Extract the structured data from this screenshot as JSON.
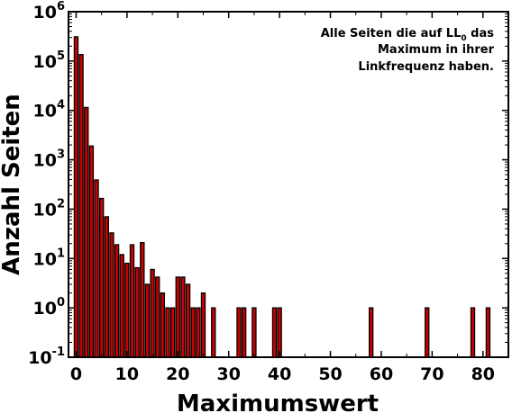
{
  "chart_data": {
    "type": "bar",
    "xlabel": "Maximumswert",
    "ylabel": "Anzahl Seiten",
    "yscale": "log",
    "ylim": [
      0.1,
      1000000
    ],
    "xlim": [
      -1.5,
      85
    ],
    "x_ticks": [
      0,
      10,
      20,
      30,
      40,
      50,
      60,
      70,
      80
    ],
    "y_ticks": [
      {
        "base": "10",
        "exp": "-1",
        "value": 0.1
      },
      {
        "base": "10",
        "exp": "0",
        "value": 1
      },
      {
        "base": "10",
        "exp": "1",
        "value": 10
      },
      {
        "base": "10",
        "exp": "2",
        "value": 100
      },
      {
        "base": "10",
        "exp": "3",
        "value": 1000
      },
      {
        "base": "10",
        "exp": "4",
        "value": 10000
      },
      {
        "base": "10",
        "exp": "5",
        "value": 100000
      },
      {
        "base": "10",
        "exp": "6",
        "value": 1000000
      }
    ],
    "bar_color": "#cc0000",
    "annotation": {
      "line1": "Alle Seiten die auf LL",
      "line1_sub": "0",
      "line1_end": " das",
      "line2": "Maximum in ihrer",
      "line3": "Linkfrequenz haben."
    },
    "x": [
      0,
      1,
      2,
      3,
      4,
      5,
      6,
      7,
      8,
      9,
      10,
      11,
      12,
      13,
      14,
      15,
      16,
      17,
      18,
      19,
      20,
      21,
      22,
      23,
      24,
      25,
      27,
      32,
      33,
      35,
      39,
      40,
      58,
      69,
      78,
      81
    ],
    "values": [
      310000,
      135000,
      11500,
      1900,
      390,
      165,
      70,
      33,
      19,
      12,
      8,
      19,
      6.5,
      21,
      3,
      6,
      4.2,
      2,
      1,
      1,
      4.2,
      4.2,
      3,
      1,
      1,
      2,
      1,
      1,
      1,
      1,
      1,
      1,
      1,
      1,
      1,
      1
    ]
  }
}
